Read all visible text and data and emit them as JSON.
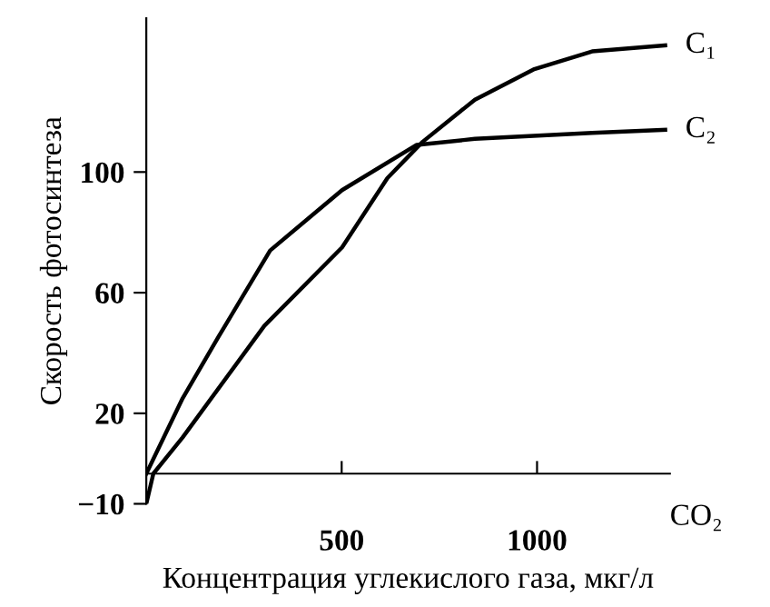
{
  "chart_data": {
    "type": "line",
    "xlabel": "Концентрация углекислого газа, мкг/л",
    "ylabel": "Скорость фотосинтеза",
    "annotations": [
      "CO₂"
    ],
    "xlim": [
      0,
      1340
    ],
    "ylim": [
      -10,
      151
    ],
    "xticks": [
      500,
      1000
    ],
    "yticks": [
      {
        "value": -10,
        "label": "−10"
      },
      20,
      60,
      100
    ],
    "grid": false,
    "legend": false,
    "series": [
      {
        "name": "C₁",
        "color": "#000000",
        "x": [
          0,
          18,
          93,
          302,
          501,
          617,
          707,
          841,
          991,
          1141,
          1328
        ],
        "values": [
          -10,
          0,
          12,
          49,
          75,
          98,
          110,
          124,
          134,
          140,
          142
        ]
      },
      {
        "name": "C₂",
        "color": "#000000",
        "x": [
          0,
          93,
          183,
          317,
          501,
          692,
          841,
          1141,
          1328
        ],
        "values": [
          0,
          25,
          45,
          74,
          94,
          109,
          111,
          113,
          114
        ]
      }
    ]
  }
}
